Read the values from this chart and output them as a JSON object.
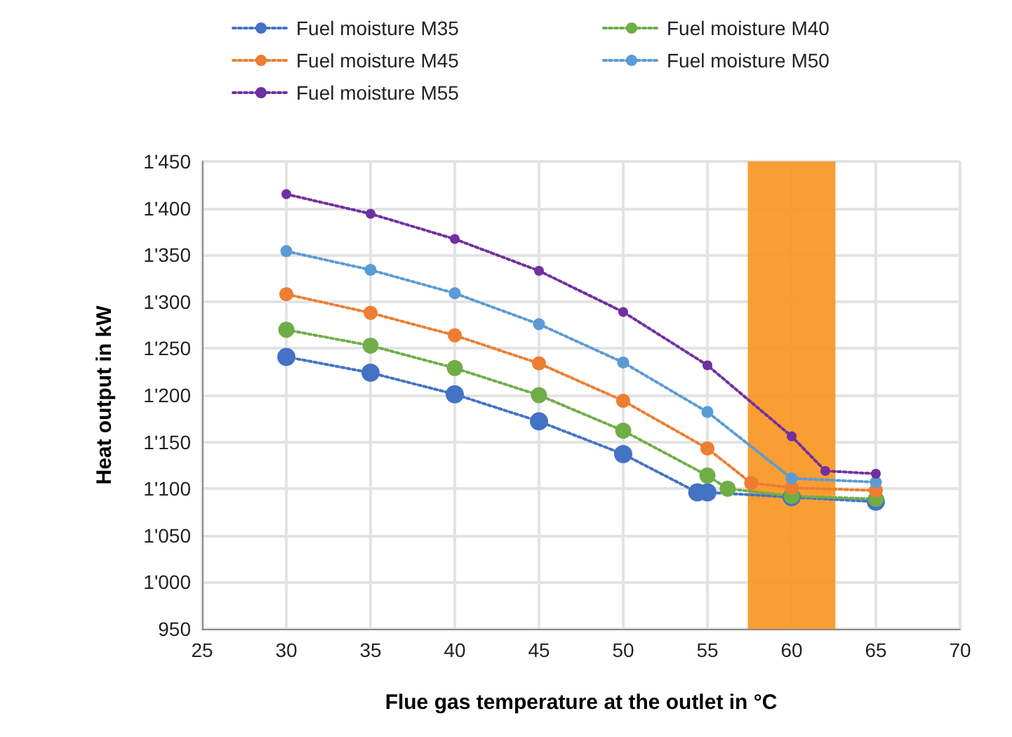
{
  "chart_data": {
    "type": "line",
    "xlabel": "Flue gas temperature at the outlet in °C",
    "ylabel": "Heat output in kW",
    "xlim": [
      25,
      70
    ],
    "xticks": [
      25,
      30,
      35,
      40,
      45,
      50,
      55,
      60,
      65,
      70
    ],
    "ylim": [
      950,
      1450
    ],
    "yticks": [
      {
        "value": 950,
        "label": "950"
      },
      {
        "value": 1000,
        "label": "1'000"
      },
      {
        "value": 1050,
        "label": "1'050"
      },
      {
        "value": 1100,
        "label": "1'100"
      },
      {
        "value": 1150,
        "label": "1'150"
      },
      {
        "value": 1200,
        "label": "1'200"
      },
      {
        "value": 1250,
        "label": "1'250"
      },
      {
        "value": 1300,
        "label": "1'300"
      },
      {
        "value": 1350,
        "label": "1'350"
      },
      {
        "value": 1400,
        "label": "1'400"
      },
      {
        "value": 1450,
        "label": "1'450"
      }
    ],
    "grid": true,
    "legend": "top",
    "marker": "circle",
    "line_style": "dotted",
    "bands": [
      {
        "axis": "x",
        "from": 57.4,
        "to": 62.6,
        "color": "#f7941d"
      }
    ],
    "series": [
      {
        "name": "Fuel moisture M35",
        "color": "#4472c4",
        "x": [
          30,
          35,
          40,
          45,
          50,
          54.4,
          55,
          60,
          65
        ],
        "values": [
          1241,
          1224,
          1201,
          1172,
          1137,
          1096,
          1096,
          1091,
          1086
        ]
      },
      {
        "name": "Fuel moisture M40",
        "color": "#70ad47",
        "x": [
          30,
          35,
          40,
          45,
          50,
          55,
          56.2,
          60,
          65
        ],
        "values": [
          1270,
          1253,
          1229,
          1200,
          1162,
          1114,
          1100,
          1092,
          1089
        ]
      },
      {
        "name": "Fuel moisture M45",
        "color": "#ed7d31",
        "x": [
          30,
          35,
          40,
          45,
          50,
          55,
          57.6,
          60,
          65
        ],
        "values": [
          1308,
          1288,
          1264,
          1234,
          1194,
          1143,
          1106,
          1101,
          1098
        ]
      },
      {
        "name": "Fuel moisture M50",
        "color": "#5b9bd5",
        "x": [
          30,
          35,
          40,
          45,
          50,
          55,
          60,
          65
        ],
        "values": [
          1354,
          1334,
          1309,
          1276,
          1235,
          1182,
          1111,
          1107
        ]
      },
      {
        "name": "Fuel moisture M55",
        "color": "#7030a0",
        "x": [
          30,
          35,
          40,
          45,
          50,
          55,
          60,
          62,
          65
        ],
        "values": [
          1415,
          1394,
          1367,
          1333,
          1289,
          1232,
          1156,
          1119,
          1116
        ]
      }
    ]
  }
}
